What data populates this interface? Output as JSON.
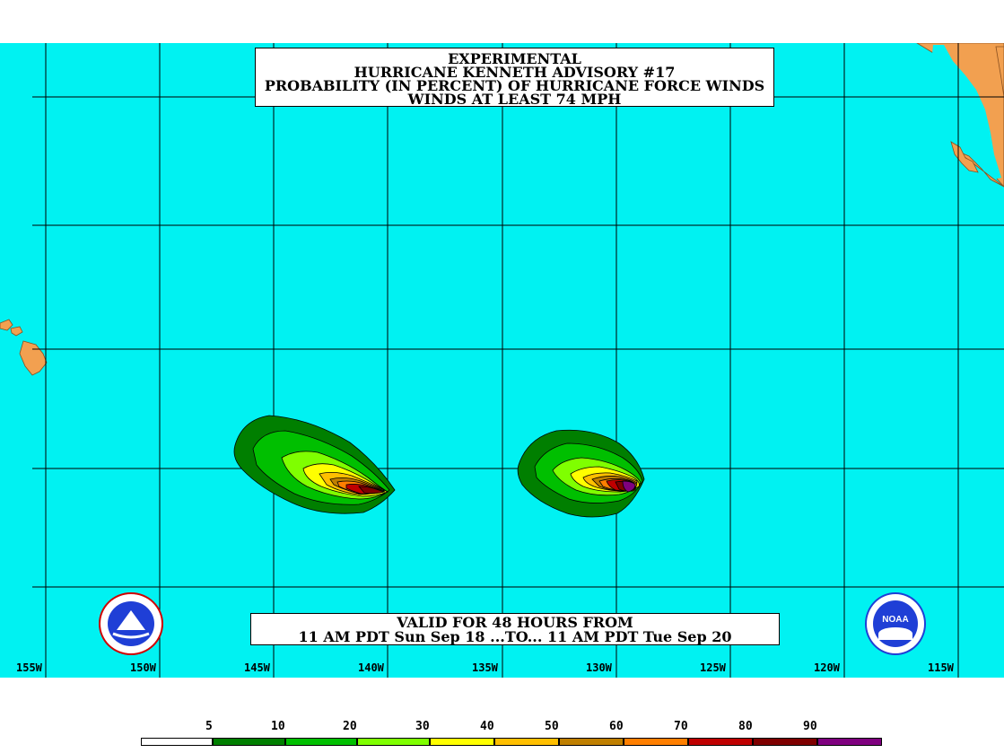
{
  "title": {
    "line1": "EXPERIMENTAL",
    "line2": "HURRICANE KENNETH ADVISORY #17",
    "line3": "PROBABILITY (IN PERCENT) OF HURRICANE FORCE WINDS",
    "line4": "WINDS AT LEAST 74 MPH"
  },
  "valid": {
    "line1": "VALID FOR 48 HOURS FROM",
    "line2": "11 AM PDT Sun Sep 18 ...TO... 11 AM PDT Tue Sep 20"
  },
  "longitudes": [
    "155W",
    "150W",
    "145W",
    "140W",
    "135W",
    "130W",
    "125W",
    "120W",
    "115W"
  ],
  "legend": {
    "labels": [
      "5",
      "10",
      "20",
      "30",
      "40",
      "50",
      "60",
      "70",
      "80",
      "90"
    ],
    "colors": [
      "#ffffff",
      "#007f00",
      "#00bf00",
      "#7fff00",
      "#ffff00",
      "#ffbf00",
      "#bf7f00",
      "#ff7f00",
      "#bf0000",
      "#7f0000",
      "#7f007f"
    ]
  },
  "colors": {
    "ocean": "#00f2f2",
    "land": "#f2a050",
    "grid": "#000000"
  },
  "logos": {
    "left": "noaa-national-weather-service-logo",
    "right": "noaa-logo"
  }
}
